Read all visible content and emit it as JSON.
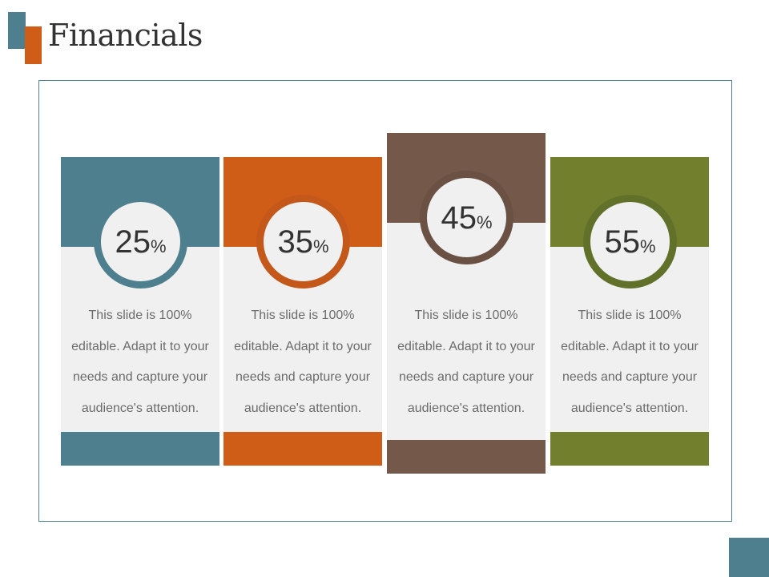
{
  "slide": {
    "title": "Financials"
  },
  "colors": {
    "teal": "#4d7f8e",
    "orange": "#d05d17",
    "brown": "#745849",
    "olive": "#72802e",
    "card_background": "#f0f0f0"
  },
  "cards": [
    {
      "value": "25",
      "unit": "%",
      "description": "This slide is 100% editable. Adapt it to your needs and capture your audience's attention."
    },
    {
      "value": "35",
      "unit": "%",
      "description": "This slide is 100% editable. Adapt it to your needs and capture your audience's attention."
    },
    {
      "value": "45",
      "unit": "%",
      "description": "This slide is 100% editable. Adapt it to your needs and capture your audience's attention."
    },
    {
      "value": "55",
      "unit": "%",
      "description": "This slide is 100% editable. Adapt it to your needs and capture your audience's attention."
    }
  ]
}
